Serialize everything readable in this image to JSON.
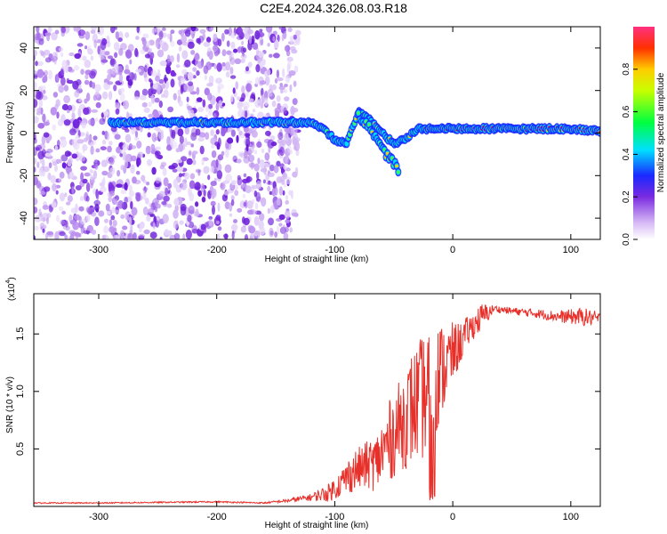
{
  "title": "C2E4.2024.326.08.03.R18",
  "colors": {
    "snr_line": "#e8302a",
    "signal_track": "#ff1a1a",
    "noise": "#7a2be0"
  },
  "chart_data": [
    {
      "type": "heatmap",
      "xlabel": "Height of straight line (km)",
      "ylabel": "Frequency (Hz)",
      "xlim": [
        -355,
        125
      ],
      "ylim": [
        -50,
        50
      ],
      "xticks": [
        -300,
        -200,
        -100,
        0,
        100
      ],
      "xtick_labels": [
        "-300",
        "-200",
        "-100",
        "0",
        "100"
      ],
      "yticks": [
        40,
        20,
        0,
        -20,
        -40
      ],
      "ytick_labels": [
        "40",
        "20",
        "0",
        "-20",
        "-40"
      ],
      "colorbar": {
        "label": "Normalized spectral amplitude",
        "range": [
          0,
          1
        ],
        "ticks": [
          0.0,
          0.2,
          0.4,
          0.6,
          0.8
        ],
        "tick_labels": [
          "0.0",
          "0.2",
          "0.4",
          "0.6",
          "0.8"
        ],
        "colormap": "rainbow"
      },
      "noise_region": {
        "x_from": -355,
        "x_to": -140
      },
      "signal_track": {
        "x": [
          -290,
          -270,
          -250,
          -230,
          -210,
          -190,
          -170,
          -150,
          -130,
          -120,
          -110,
          -100,
          -90,
          -80,
          -70,
          -60,
          -50,
          -40,
          -30,
          -20,
          0,
          20,
          40,
          60,
          80,
          100,
          125
        ],
        "y": [
          5,
          5,
          5,
          5,
          5,
          5,
          5,
          5,
          5,
          5,
          2,
          -3,
          -5,
          10,
          6,
          0,
          -5,
          -3,
          2,
          2,
          2,
          2,
          2,
          2,
          2,
          2,
          1
        ]
      },
      "branch_track": {
        "x": [
          -80,
          -70,
          -60,
          -50,
          -45
        ],
        "y": [
          8,
          2,
          -8,
          -14,
          -18
        ]
      }
    },
    {
      "type": "line",
      "xlabel": "Height of straight line (km)",
      "ylabel": "SNR (10 * v/v)",
      "scale_note": "(x10",
      "scale_exp": "4",
      "xlim": [
        -355,
        125
      ],
      "ylim": [
        0,
        1.85
      ],
      "xticks": [
        -300,
        -200,
        -100,
        0,
        100
      ],
      "xtick_labels": [
        "-300",
        "-200",
        "-100",
        "0",
        "100"
      ],
      "yticks": [
        0.5,
        1.0,
        1.5
      ],
      "ytick_labels": [
        "0.5",
        "1.0",
        "1.5"
      ],
      "series": [
        {
          "x": [
            -355,
            -300,
            -250,
            -200,
            -160,
            -140,
            -120,
            -105,
            -95,
            -85,
            -75,
            -65,
            -55,
            -45,
            -35,
            -25,
            -15,
            -5,
            5,
            15,
            25,
            35,
            50,
            70,
            90,
            110,
            125
          ],
          "y": [
            0.03,
            0.03,
            0.035,
            0.04,
            0.03,
            0.05,
            0.08,
            0.12,
            0.2,
            0.3,
            0.35,
            0.38,
            0.55,
            0.7,
            0.85,
            0.95,
            1.1,
            1.25,
            1.4,
            1.55,
            1.65,
            1.72,
            1.7,
            1.68,
            1.65,
            1.65,
            1.63
          ],
          "amp": [
            0.005,
            0.005,
            0.006,
            0.006,
            0.006,
            0.015,
            0.03,
            0.08,
            0.12,
            0.18,
            0.2,
            0.25,
            0.35,
            0.4,
            0.5,
            0.55,
            0.5,
            0.35,
            0.2,
            0.12,
            0.12,
            0.03,
            0.03,
            0.04,
            0.05,
            0.08,
            0.06
          ]
        }
      ]
    }
  ]
}
